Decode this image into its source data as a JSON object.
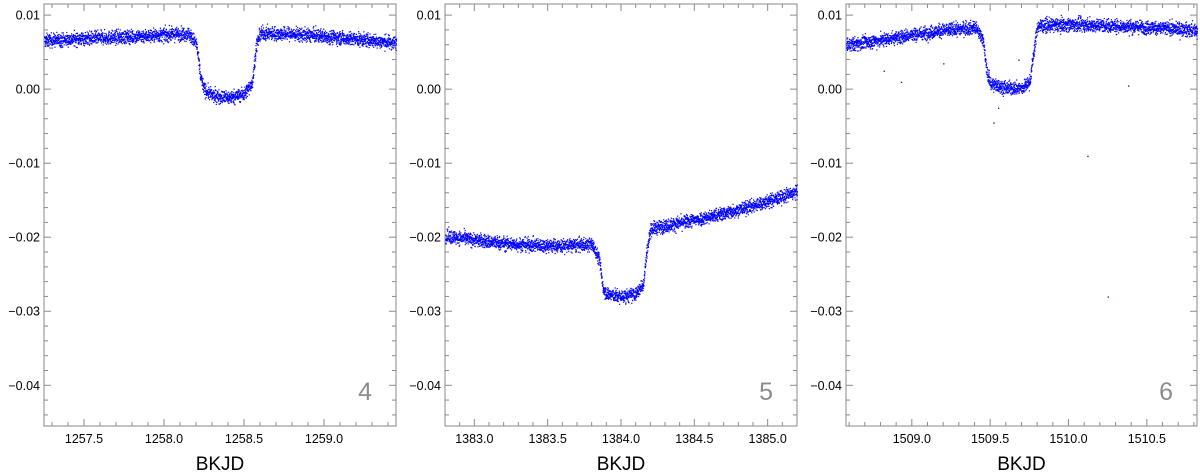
{
  "chart_data": [
    {
      "type": "scatter",
      "panel_label": "4",
      "xlabel": "BKJD",
      "ylabel": "",
      "xlim": [
        1257.25,
        1259.45
      ],
      "ylim": [
        -0.0455,
        0.0115
      ],
      "xticks": [
        1257.5,
        1258.0,
        1258.5,
        1259.0
      ],
      "xtick_labels": [
        "1257.5",
        "1258.0",
        "1258.5",
        "1259.0"
      ],
      "yticks": [
        0.01,
        0.0,
        -0.01,
        -0.02,
        -0.03,
        -0.04
      ],
      "ytick_labels": [
        "0.01",
        "0.00",
        "−0.01",
        "−0.02",
        "−0.03",
        "−0.04"
      ],
      "grid": false,
      "point_color": "#0000ff",
      "series": [
        {
          "x": [
            1257.25,
            1257.5,
            1257.75,
            1258.0,
            1258.15,
            1258.2,
            1258.225,
            1258.25,
            1258.3,
            1258.4,
            1258.5,
            1258.55,
            1258.575,
            1258.6,
            1258.8,
            1259.0,
            1259.2,
            1259.45
          ],
          "y": [
            0.0066,
            0.0069,
            0.0071,
            0.0074,
            0.0076,
            0.0062,
            0.0018,
            0.0,
            -0.0008,
            -0.0011,
            -0.0006,
            0.001,
            0.006,
            0.0076,
            0.0075,
            0.0072,
            0.0068,
            0.0063
          ]
        }
      ]
    },
    {
      "type": "scatter",
      "panel_label": "5",
      "xlabel": "BKJD",
      "ylabel": "",
      "xlim": [
        1382.8,
        1385.2
      ],
      "ylim": [
        -0.0455,
        0.0115
      ],
      "xticks": [
        1383.0,
        1383.5,
        1384.0,
        1384.5,
        1385.0
      ],
      "xtick_labels": [
        "1383.0",
        "1383.5",
        "1384.0",
        "1384.5",
        "1385.0"
      ],
      "yticks": [
        0.01,
        0.0,
        -0.01,
        -0.02,
        -0.03,
        -0.04
      ],
      "ytick_labels": [
        "0.01",
        "0.00",
        "−0.01",
        "−0.02",
        "−0.03",
        "−0.04"
      ],
      "grid": false,
      "point_color": "#0000ff",
      "series": [
        {
          "x": [
            1382.8,
            1383.0,
            1383.2,
            1383.4,
            1383.6,
            1383.8,
            1383.85,
            1383.875,
            1383.9,
            1384.0,
            1384.1,
            1384.15,
            1384.175,
            1384.2,
            1384.4,
            1384.6,
            1384.8,
            1385.0,
            1385.2
          ],
          "y": [
            -0.0198,
            -0.0203,
            -0.0208,
            -0.021,
            -0.0211,
            -0.0209,
            -0.023,
            -0.0268,
            -0.0276,
            -0.028,
            -0.0276,
            -0.0262,
            -0.0215,
            -0.0188,
            -0.018,
            -0.0172,
            -0.0162,
            -0.0151,
            -0.0138
          ]
        }
      ]
    },
    {
      "type": "scatter",
      "panel_label": "6",
      "xlabel": "BKJD",
      "ylabel": "",
      "xlim": [
        1508.58,
        1510.82
      ],
      "ylim": [
        -0.0455,
        0.0115
      ],
      "xticks": [
        1509.0,
        1509.5,
        1510.0,
        1510.5
      ],
      "xtick_labels": [
        "1509.0",
        "1509.5",
        "1510.0",
        "1510.5"
      ],
      "yticks": [
        0.01,
        0.0,
        -0.01,
        -0.02,
        -0.03,
        -0.04
      ],
      "ytick_labels": [
        "0.01",
        "0.00",
        "−0.01",
        "−0.02",
        "−0.03",
        "−0.04"
      ],
      "grid": false,
      "point_color": "#0000ff",
      "series": [
        {
          "x": [
            1508.58,
            1508.8,
            1509.0,
            1509.2,
            1509.4,
            1509.45,
            1509.475,
            1509.5,
            1509.6,
            1509.7,
            1509.75,
            1509.775,
            1509.8,
            1510.0,
            1510.2,
            1510.4,
            1510.6,
            1510.82
          ],
          "y": [
            0.006,
            0.0067,
            0.0074,
            0.008,
            0.0084,
            0.007,
            0.0025,
            0.0008,
            0.0002,
            0.0002,
            0.001,
            0.005,
            0.0086,
            0.0088,
            0.0087,
            0.0085,
            0.0083,
            0.008
          ]
        }
      ],
      "outliers": {
        "x": [
          1508.82,
          1508.93,
          1509.2,
          1509.52,
          1509.55,
          1509.68,
          1510.12,
          1510.25,
          1510.38
        ],
        "y": [
          0.0025,
          0.001,
          0.0035,
          -0.0045,
          -0.0025,
          0.004,
          -0.009,
          -0.028,
          0.0005
        ]
      }
    }
  ]
}
